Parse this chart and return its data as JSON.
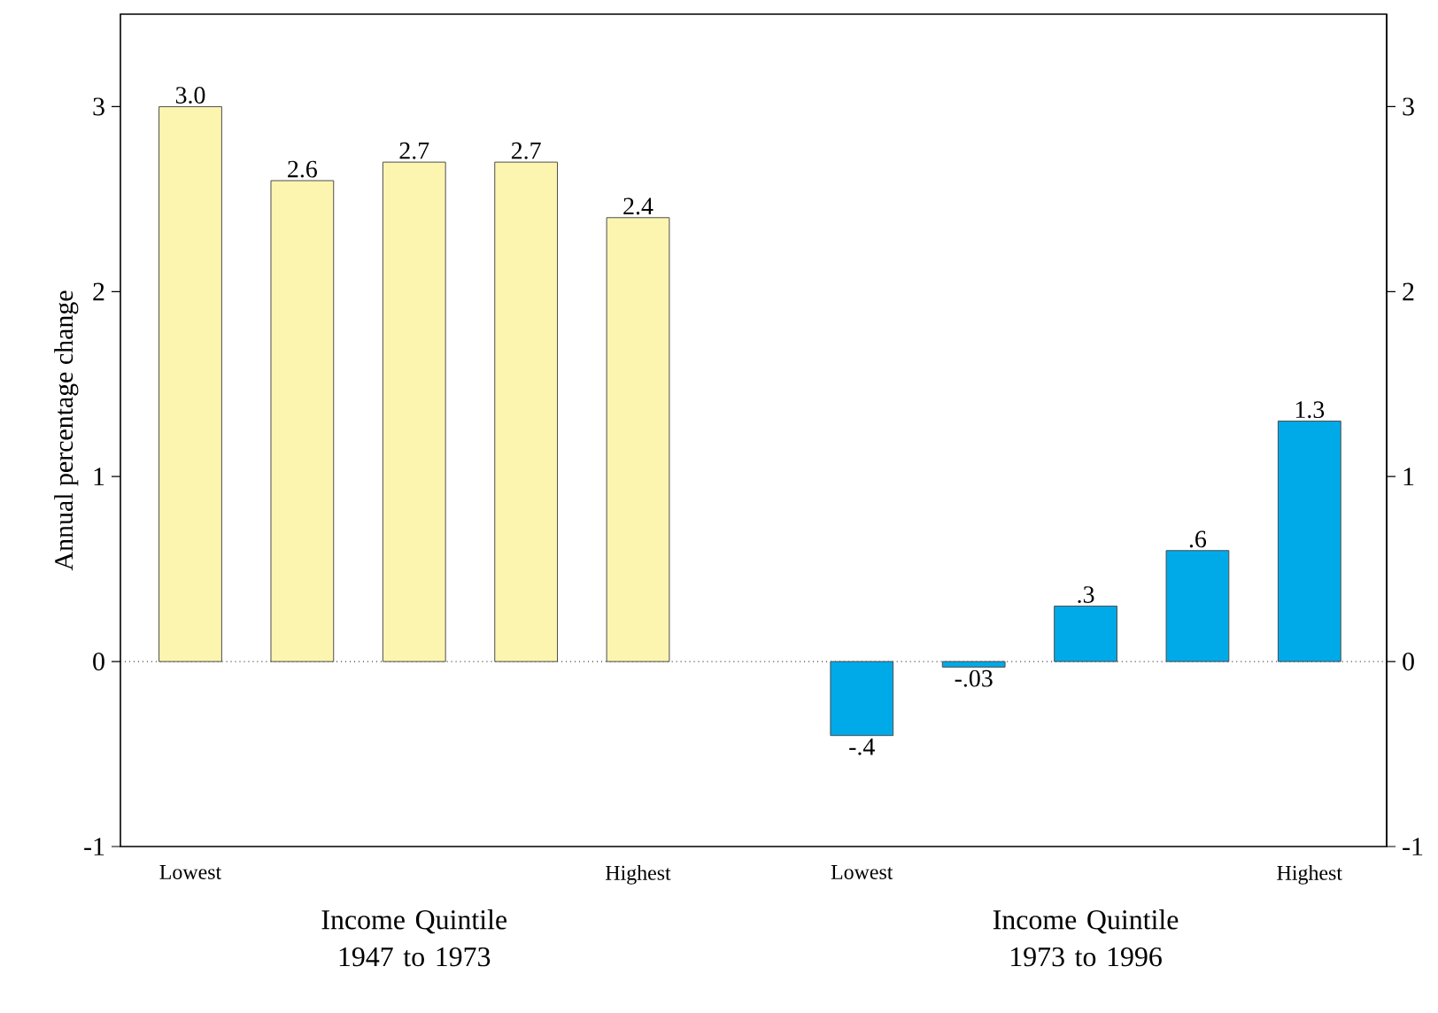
{
  "chart_data": {
    "type": "bar",
    "ylabel": "Annual percentage change",
    "categories": [
      "Lowest",
      null,
      null,
      null,
      "Highest",
      null,
      "Lowest",
      null,
      null,
      null,
      "Highest"
    ],
    "series": [
      {
        "color": "#fcf5b0",
        "values": [
          3.0,
          2.6,
          2.7,
          2.7,
          2.4,
          null,
          null,
          null,
          null,
          null,
          null
        ],
        "value_labels": [
          "3.0",
          "2.6",
          "2.7",
          "2.7",
          "2.4",
          null,
          null,
          null,
          null,
          null,
          null
        ]
      },
      {
        "color": "#00aae8",
        "values": [
          null,
          null,
          null,
          null,
          null,
          null,
          -0.4,
          -0.03,
          0.3,
          0.6,
          1.3
        ],
        "value_labels": [
          null,
          null,
          null,
          null,
          null,
          null,
          "-.4",
          "-.03",
          ".3",
          ".6",
          "1.3"
        ]
      }
    ],
    "ylim": [
      -1,
      3.5
    ],
    "yticks": [
      -1,
      0,
      1,
      2,
      3
    ],
    "y2lim": [
      -1,
      3.5
    ],
    "y2ticks": [
      -1,
      0,
      1,
      2,
      3
    ],
    "ref_lines": [
      {
        "axis": "y",
        "value": 0,
        "line_style": "dotted",
        "color": "#000000"
      }
    ],
    "annotations": [
      "Income Quintile\n1947 to 1973",
      "Income Quintile\n1973 to 1996"
    ],
    "grid": false
  }
}
